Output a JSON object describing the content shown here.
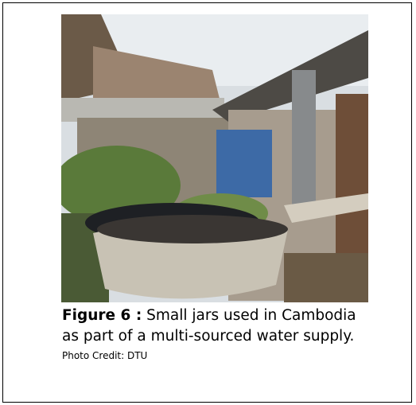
{
  "figure": {
    "label": "Figure 6 :",
    "caption": "Small jars used in Cambodia as part of a multi-sourced water supply.",
    "credit": "Photo Credit: DTU"
  }
}
